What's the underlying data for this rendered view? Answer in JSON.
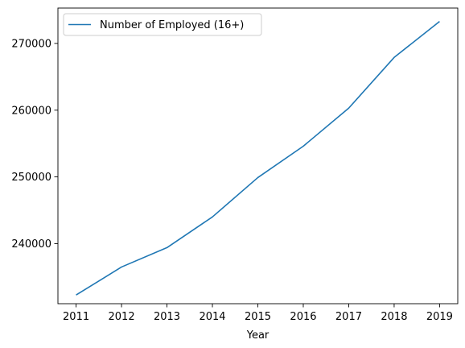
{
  "chart_data": {
    "type": "line",
    "x": [
      2011,
      2012,
      2013,
      2014,
      2015,
      2016,
      2017,
      2018,
      2019
    ],
    "x_tick_labels": [
      "2011",
      "2012",
      "2013",
      "2014",
      "2015",
      "2016",
      "2017",
      "2018",
      "2019"
    ],
    "xlim": [
      2010.6,
      2019.4
    ],
    "y_ticks": [
      240000,
      250000,
      260000,
      270000
    ],
    "y_tick_labels": [
      "240000",
      "250000",
      "260000",
      "270000"
    ],
    "ylim": [
      231000,
      275300
    ],
    "xlabel": "Year",
    "ylabel": "",
    "title": "",
    "grid": false,
    "legend_placement": "top-left",
    "series": [
      {
        "name": "Number of Employed (16+)",
        "color": "#1f77b4",
        "values": [
          232300,
          236500,
          239400,
          244000,
          249900,
          254600,
          260300,
          267900,
          273300
        ]
      }
    ]
  }
}
